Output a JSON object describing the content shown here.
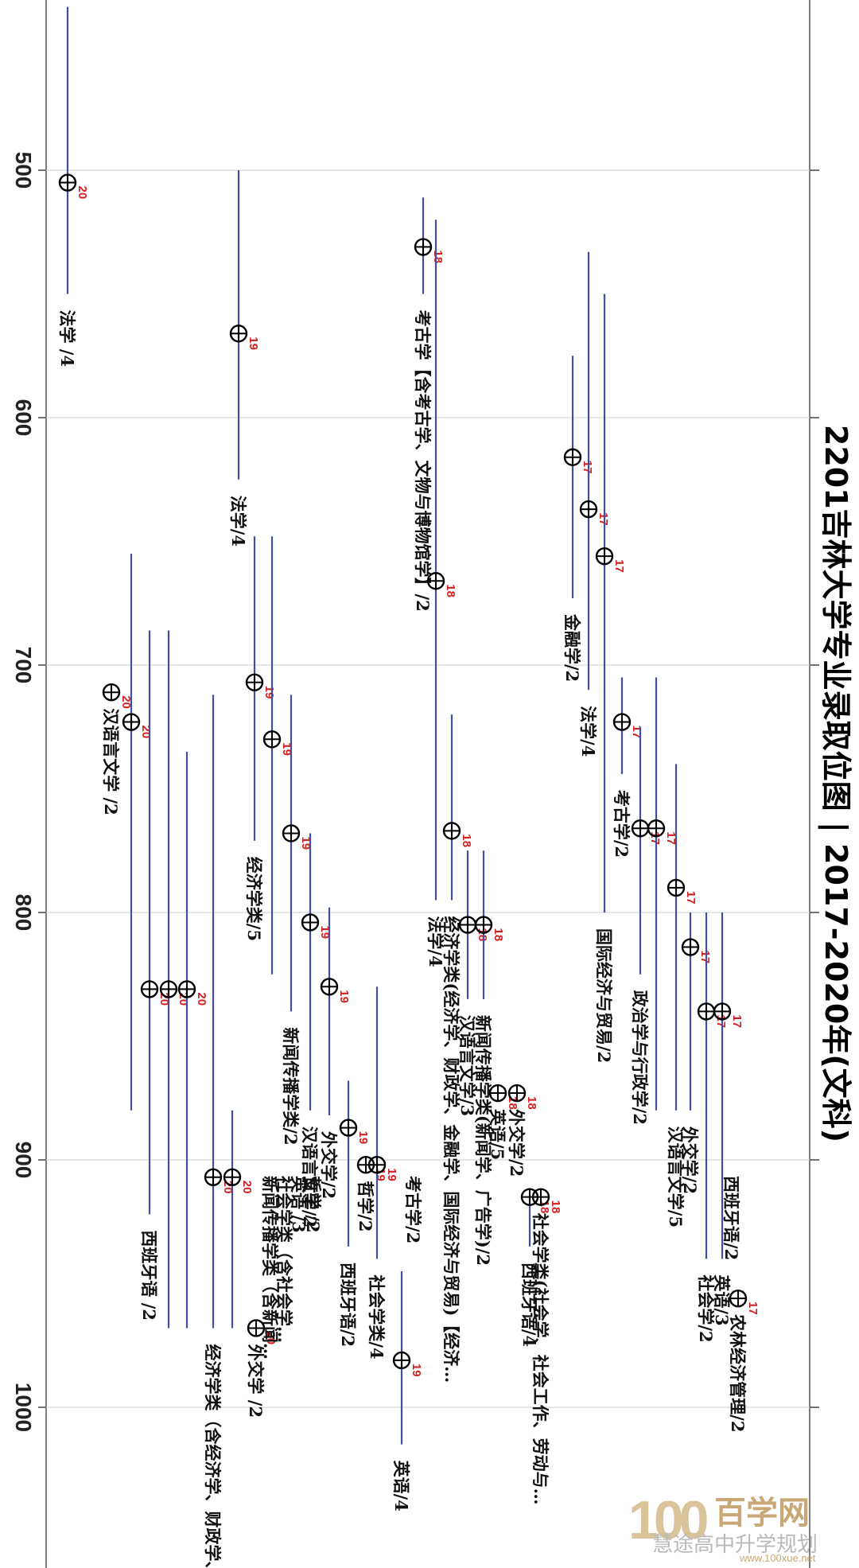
{
  "chart_data": {
    "type": "scatter",
    "title": "2201吉林大学专业录取位图 | 2017-2020年(文科)",
    "ylim": [
      432,
      1070
    ],
    "yticks": [
      500,
      600,
      700,
      800,
      900,
      1000
    ],
    "grid": true,
    "orientation": "rotated-90",
    "note": "each point = admitted rank (位次) with a vertical min–max range; year label in red",
    "points": [
      {
        "label": "法学 /4",
        "year": "20",
        "value": 505,
        "min": 434,
        "max": 550
      },
      {
        "label": "汉语言文学 /2",
        "year": "20",
        "value": 711,
        "min": null,
        "max": null
      },
      {
        "label": "",
        "year": "20",
        "value": 723,
        "min": 655,
        "max": 880
      },
      {
        "label": "西班牙语 /2",
        "year": "20",
        "value": 831,
        "min": 686,
        "max": 922
      },
      {
        "label": "",
        "year": "20",
        "value": 831,
        "min": 686,
        "max": 968
      },
      {
        "label": "",
        "year": "20",
        "value": 831,
        "min": 735,
        "max": 968
      },
      {
        "label": "经济学类（含经济学、财政学、…",
        "year": "20",
        "value": 907,
        "min": 712,
        "max": 968
      },
      {
        "label": "",
        "year": "20",
        "value": 907,
        "min": 880,
        "max": 968
      },
      {
        "label": "外交学 /2",
        "year": "20",
        "value": 968,
        "min": null,
        "max": null
      },
      {
        "label": "新闻传播学类（含新闻…",
        "year": "",
        "value": null,
        "min": null,
        "max": null
      },
      {
        "label": "社会学类（含社会学…",
        "year": "",
        "value": null,
        "min": null,
        "max": null
      },
      {
        "label": "英语 /3",
        "year": "",
        "value": null,
        "min": null,
        "max": null
      },
      {
        "label": "哲学 /2",
        "year": "",
        "value": null,
        "min": null,
        "max": null
      },
      {
        "label": "法学/4",
        "year": "19",
        "value": 566,
        "min": 500,
        "max": 625
      },
      {
        "label": "经济学类/5",
        "year": "19",
        "value": 707,
        "min": 648,
        "max": 771
      },
      {
        "label": "",
        "year": "19",
        "value": 730,
        "min": 648,
        "max": 825
      },
      {
        "label": "新闻传播学类/2",
        "year": "19",
        "value": 768,
        "min": 712,
        "max": 840
      },
      {
        "label": "汉语言文学/2",
        "year": "19",
        "value": 804,
        "min": 768,
        "max": 880
      },
      {
        "label": "外交学/2",
        "year": "19",
        "value": 830,
        "min": 798,
        "max": 882
      },
      {
        "label": "西班牙语/2",
        "year": "19",
        "value": 887,
        "min": 868,
        "max": 935
      },
      {
        "label": "哲学/2",
        "year": "19",
        "value": 902,
        "min": null,
        "max": null
      },
      {
        "label": "社会学类/4",
        "year": "19",
        "value": 902,
        "min": 830,
        "max": 940
      },
      {
        "label": "英语/4",
        "year": "19",
        "value": 981,
        "min": 945,
        "max": 1015
      },
      {
        "label": "考古学/2",
        "year": "",
        "value": null,
        "min": null,
        "max": null
      },
      {
        "label": "考古学【含考古学、文物与博物馆学】/2",
        "year": "18",
        "value": 531,
        "min": 511,
        "max": 550
      },
      {
        "label": "法学/4",
        "year": "18",
        "value": 666,
        "min": 520,
        "max": 795
      },
      {
        "label": "经济学类(经济学、财政学、金融学、国际经济与贸易)【经济…",
        "year": "18",
        "value": 767,
        "min": 720,
        "max": 795
      },
      {
        "label": "汉语言文学/3",
        "year": "18",
        "value": 805,
        "min": 775,
        "max": 835
      },
      {
        "label": "新闻传播学类(新闻学、广告学)/2",
        "year": "18",
        "value": 805,
        "min": 775,
        "max": 835
      },
      {
        "label": "英语/5",
        "year": "18",
        "value": 873,
        "min": null,
        "max": null
      },
      {
        "label": "外交学/2",
        "year": "18",
        "value": 873,
        "min": null,
        "max": null
      },
      {
        "label": "西班牙语/4",
        "year": "18",
        "value": 915,
        "min": 915,
        "max": 935
      },
      {
        "label": "社会学类(社会学、社会工作、劳动与…",
        "year": "18",
        "value": 915,
        "min": null,
        "max": null
      },
      {
        "label": "金融学/2",
        "year": "17",
        "value": 616,
        "min": 575,
        "max": 673
      },
      {
        "label": "法学/4",
        "year": "17",
        "value": 637,
        "min": 533,
        "max": 710
      },
      {
        "label": "国际经济与贸易/2",
        "year": "17",
        "value": 656,
        "min": 550,
        "max": 800
      },
      {
        "label": "考古学/2",
        "year": "17",
        "value": 723,
        "min": 705,
        "max": 744
      },
      {
        "label": "政治学与行政学/2",
        "year": "17",
        "value": 766,
        "min": 725,
        "max": 825
      },
      {
        "label": "",
        "year": "17",
        "value": 766,
        "min": 705,
        "max": 880
      },
      {
        "label": "汉语言文学/5",
        "year": "17",
        "value": 790,
        "min": 740,
        "max": 880
      },
      {
        "label": "外交学/2",
        "year": "17",
        "value": 814,
        "min": 800,
        "max": 880
      },
      {
        "label": "社会学/2",
        "year": "17",
        "value": 840,
        "min": 800,
        "max": 940
      },
      {
        "label": "英语/3",
        "year": "17",
        "value": 840,
        "min": 800,
        "max": 940
      },
      {
        "label": "西班牙语/2",
        "year": "",
        "value": null,
        "min": null,
        "max": null
      },
      {
        "label": "农林经济管理/2",
        "year": "17",
        "value": 956,
        "min": null,
        "max": null
      }
    ]
  },
  "watermark": {
    "number": "100",
    "brand": "百学网",
    "sub": "慧途高中升学规划",
    "url": "www.100xue.net"
  }
}
